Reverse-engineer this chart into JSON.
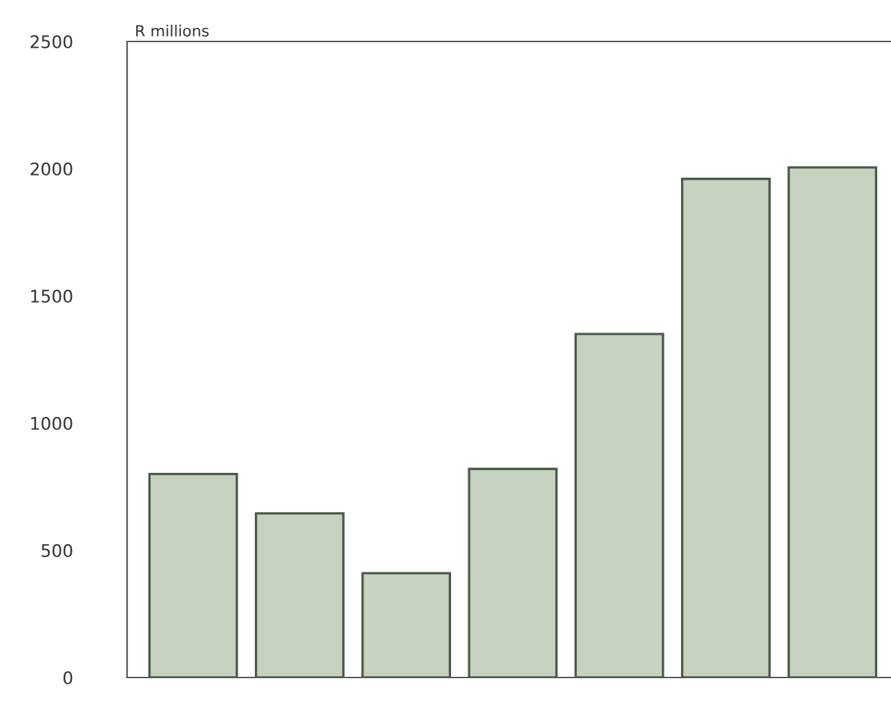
{
  "chart_data": {
    "type": "bar",
    "ylabel": "R millions",
    "categories": [
      null,
      null,
      null,
      null,
      null,
      null,
      null
    ],
    "values": [
      800,
      645,
      410,
      820,
      1350,
      1960,
      2005
    ],
    "color": "#c4d2bf",
    "ylim": [
      0,
      2500
    ],
    "yticks": [
      0,
      500,
      1000,
      1500,
      2000,
      2500
    ],
    "grid": false,
    "legend": false
  }
}
